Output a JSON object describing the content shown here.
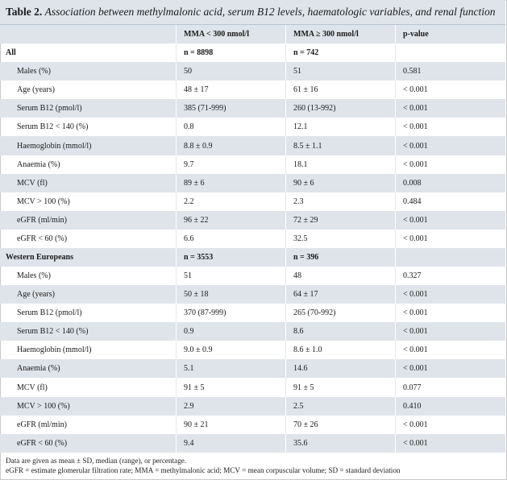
{
  "caption": {
    "label": "Table 2.",
    "text": "Association between methylmalonic acid, serum B12 levels, haematologic variables, and renal function"
  },
  "columns": [
    "",
    "MMA < 300 nmol/l",
    "MMA ≥ 300 nmol/l",
    "p-value"
  ],
  "groups": [
    {
      "name": "All",
      "n_low": "n = 8898",
      "n_high": "n = 742",
      "rows": [
        [
          "Males (%)",
          "50",
          "51",
          "0.581"
        ],
        [
          "Age (years)",
          "48 ± 17",
          "61 ± 16",
          "< 0.001"
        ],
        [
          "Serum B12 (pmol/l)",
          "385 (71-999)",
          "260 (13-992)",
          "< 0.001"
        ],
        [
          "Serum B12 < 140 (%)",
          "0.8",
          "12.1",
          "< 0.001"
        ],
        [
          "Haemoglobin (mmol/l)",
          "8.8 ± 0.9",
          "8.5 ± 1.1",
          "< 0.001"
        ],
        [
          "Anaemia (%)",
          "9.7",
          "18.1",
          "< 0.001"
        ],
        [
          "MCV (fl)",
          "89 ± 6",
          "90 ± 6",
          "0.008"
        ],
        [
          "MCV > 100 (%)",
          "2.2",
          "2.3",
          "0.484"
        ],
        [
          "eGFR (ml/min)",
          "96 ± 22",
          "72 ± 29",
          "< 0.001"
        ],
        [
          "eGFR < 60 (%)",
          "6.6",
          "32.5",
          "< 0.001"
        ]
      ]
    },
    {
      "name": "Western Europeans",
      "n_low": "n = 3553",
      "n_high": "n = 396",
      "rows": [
        [
          "Males (%)",
          "51",
          "48",
          "0.327"
        ],
        [
          "Age (years)",
          "50 ± 18",
          "64 ± 17",
          "< 0.001"
        ],
        [
          "Serum B12 (pmol/l)",
          "370 (87-999)",
          "265 (70-992)",
          "< 0.001"
        ],
        [
          "Serum B12 < 140 (%)",
          "0.9",
          "8.6",
          "< 0.001"
        ],
        [
          "Haemoglobin (mmol/l)",
          "9.0 ± 0.9",
          "8.6 ± 1.0",
          "< 0.001"
        ],
        [
          "Anaemia (%)",
          "5.1",
          "14.6",
          "< 0.001"
        ],
        [
          "MCV (fl)",
          "91 ± 5",
          "91 ± 5",
          "0.077"
        ],
        [
          "MCV > 100 (%)",
          "2.9",
          "2.5",
          "0.410"
        ],
        [
          "eGFR (ml/min)",
          "90 ± 21",
          "70 ± 26",
          "< 0.001"
        ],
        [
          "eGFR < 60 (%)",
          "9.4",
          "35.6",
          "< 0.001"
        ]
      ]
    }
  ],
  "footnotes": [
    "Data are given as mean ± SD, median (range), or percentage.",
    "eGFR = estimate glomerular filtration rate; MMA = methylmalonic acid; MCV = mean corpuscular volume; SD = standard deviation"
  ]
}
